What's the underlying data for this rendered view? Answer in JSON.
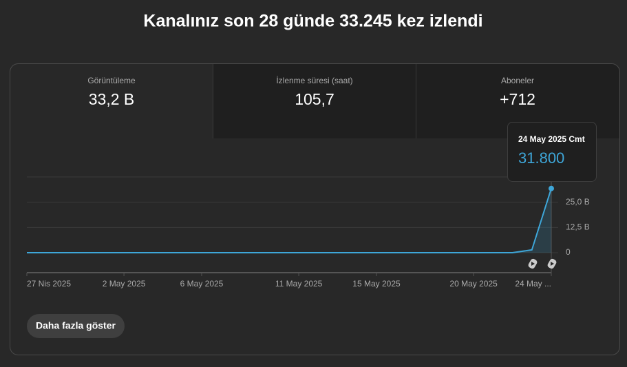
{
  "header": {
    "title": "Kanalınız son 28 günde 33.245 kez izlendi"
  },
  "tabs": [
    {
      "label": "Görüntüleme",
      "value": "33,2 B"
    },
    {
      "label": "İzlenme süresi (saat)",
      "value": "105,7"
    },
    {
      "label": "Aboneler",
      "value": "+712"
    }
  ],
  "chart_data": {
    "type": "line",
    "color": "#3ea6d8",
    "grid": true,
    "categories": [
      "27 Nis 2025",
      null,
      null,
      null,
      null,
      "2 May 2025",
      null,
      null,
      null,
      "6 May 2025",
      null,
      null,
      null,
      null,
      "11 May 2025",
      null,
      null,
      null,
      "15 May 2025",
      null,
      null,
      null,
      null,
      "20 May 2025",
      null,
      null,
      null,
      "24 May ..."
    ],
    "values": [
      0,
      0,
      0,
      0,
      0,
      0,
      0,
      0,
      0,
      0,
      0,
      0,
      0,
      0,
      0,
      0,
      0,
      0,
      0,
      0,
      0,
      0,
      0,
      0,
      0,
      0,
      1400,
      31800
    ],
    "value_labels": [
      null,
      null,
      null,
      null,
      null,
      null,
      null,
      null,
      null,
      null,
      null,
      null,
      null,
      null,
      null,
      null,
      null,
      null,
      null,
      null,
      null,
      null,
      null,
      null,
      null,
      null,
      null,
      "31.800"
    ],
    "tooltip_title": "24 May 2025 Cmt",
    "ylim": [
      0,
      37500
    ],
    "yticks": [
      0,
      {
        "value": 12500,
        "label": "12,5 B"
      },
      {
        "value": 25000,
        "label": "25,0 B"
      }
    ]
  },
  "button": {
    "label": "Daha fazla göster"
  }
}
